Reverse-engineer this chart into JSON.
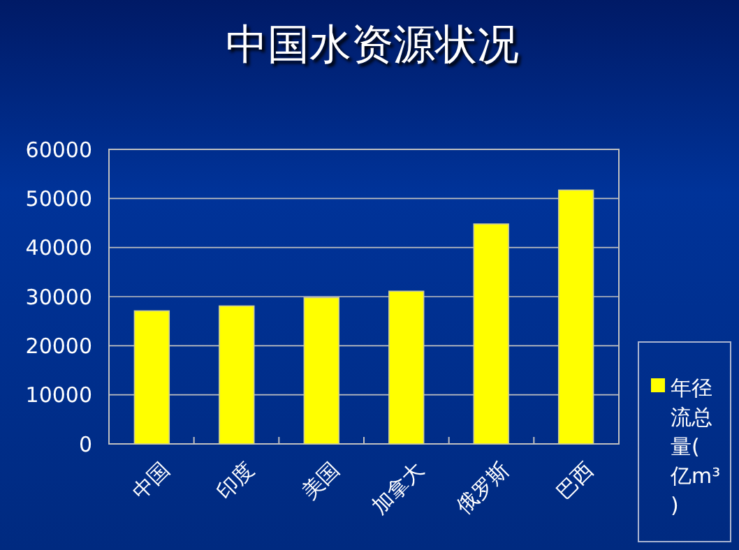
{
  "chart_data": {
    "type": "bar",
    "title": "中国水资源状况",
    "categories": [
      "中国",
      "印度",
      "美国",
      "加拿大",
      "俄罗斯",
      "巴西"
    ],
    "series": [
      {
        "name": "年径流总量(亿m³)",
        "color": "#ffff00",
        "values": [
          27100,
          28100,
          29800,
          31100,
          44800,
          51700
        ]
      }
    ],
    "ylim": [
      0,
      60000
    ],
    "yticks": [
      0,
      10000,
      20000,
      30000,
      40000,
      50000,
      60000
    ],
    "grid": "y",
    "legend": "bottom right"
  }
}
